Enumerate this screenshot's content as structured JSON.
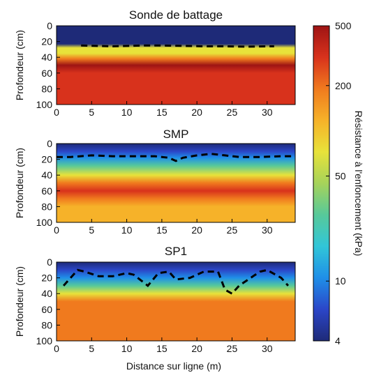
{
  "colors": {
    "background": "#ffffff",
    "axis": "#000000",
    "boundary_line": "#000000",
    "colormap": [
      "#1e2a78",
      "#2b46c8",
      "#1f8fe8",
      "#31c6d8",
      "#57c99a",
      "#a6d35a",
      "#e8e23a",
      "#f6b229",
      "#f07a1e",
      "#d8321c",
      "#9e1414"
    ]
  },
  "chart_data": [
    {
      "type": "heatmap",
      "title": "Sonde de battage",
      "xlabel": "",
      "ylabel": "Profondeur (cm)",
      "xlim": [
        0,
        34
      ],
      "ylim": [
        0,
        100
      ],
      "y_inverted": true,
      "xticks": [
        "0",
        "5",
        "10",
        "15",
        "20",
        "25",
        "30"
      ],
      "yticks": [
        "0",
        "20",
        "40",
        "60",
        "80",
        "100"
      ],
      "depth_profile": [
        {
          "depth": 0,
          "kpa": 5
        },
        {
          "depth": 10,
          "kpa": 5
        },
        {
          "depth": 23,
          "kpa": 5
        },
        {
          "depth": 28,
          "kpa": 60
        },
        {
          "depth": 35,
          "kpa": 90
        },
        {
          "depth": 42,
          "kpa": 180
        },
        {
          "depth": 50,
          "kpa": 420
        },
        {
          "depth": 60,
          "kpa": 350
        },
        {
          "depth": 70,
          "kpa": 320
        },
        {
          "depth": 80,
          "kpa": 260
        },
        {
          "depth": 90,
          "kpa": 300
        },
        {
          "depth": 100,
          "kpa": 300
        }
      ],
      "boundary_line": {
        "style": "dashed",
        "x": [
          3.5,
          8,
          12,
          15,
          18,
          21,
          24,
          27,
          30,
          31
        ],
        "y": [
          25,
          26,
          25,
          25,
          25.5,
          26,
          26,
          26.5,
          26,
          26
        ]
      }
    },
    {
      "type": "heatmap",
      "title": "SMP",
      "xlabel": "",
      "ylabel": "Profondeur (cm)",
      "xlim": [
        0,
        34
      ],
      "ylim": [
        0,
        100
      ],
      "y_inverted": true,
      "xticks": [
        "0",
        "5",
        "10",
        "15",
        "20",
        "25",
        "30"
      ],
      "yticks": [
        "0",
        "20",
        "40",
        "60",
        "80",
        "100"
      ],
      "depth_profile": [
        {
          "depth": 0,
          "kpa": 5
        },
        {
          "depth": 10,
          "kpa": 6
        },
        {
          "depth": 18,
          "kpa": 12
        },
        {
          "depth": 28,
          "kpa": 30
        },
        {
          "depth": 40,
          "kpa": 60
        },
        {
          "depth": 50,
          "kpa": 180
        },
        {
          "depth": 60,
          "kpa": 250
        },
        {
          "depth": 70,
          "kpa": 160
        },
        {
          "depth": 80,
          "kpa": 120
        },
        {
          "depth": 90,
          "kpa": 110
        },
        {
          "depth": 100,
          "kpa": 100
        }
      ],
      "boundary_line": {
        "style": "dashed",
        "x": [
          0,
          2,
          5,
          8,
          11,
          14,
          16,
          17,
          18,
          20,
          22,
          24,
          26,
          29,
          32,
          34
        ],
        "y": [
          17,
          17,
          15,
          16,
          16,
          16,
          18,
          22,
          18,
          15,
          13,
          15,
          17,
          17,
          16,
          16
        ]
      }
    },
    {
      "type": "heatmap",
      "title": "SP1",
      "xlabel": "Distance sur ligne (m)",
      "ylabel": "Profondeur (cm)",
      "xlim": [
        0,
        34
      ],
      "ylim": [
        0,
        100
      ],
      "y_inverted": true,
      "xticks": [
        "0",
        "5",
        "10",
        "15",
        "20",
        "25",
        "30"
      ],
      "yticks": [
        "0",
        "20",
        "40",
        "60",
        "80",
        "100"
      ],
      "depth_profile": [
        {
          "depth": 0,
          "kpa": 5
        },
        {
          "depth": 10,
          "kpa": 6
        },
        {
          "depth": 20,
          "kpa": 12
        },
        {
          "depth": 30,
          "kpa": 30
        },
        {
          "depth": 40,
          "kpa": 60
        },
        {
          "depth": 50,
          "kpa": 200
        },
        {
          "depth": 60,
          "kpa": 220
        },
        {
          "depth": 70,
          "kpa": 240
        },
        {
          "depth": 80,
          "kpa": 180
        },
        {
          "depth": 90,
          "kpa": 200
        },
        {
          "depth": 100,
          "kpa": 220
        }
      ],
      "boundary_line": {
        "style": "dashed",
        "x": [
          1,
          2,
          3,
          4,
          6,
          8,
          10,
          11,
          13,
          14.5,
          16,
          17,
          19,
          21,
          23,
          24,
          25,
          26,
          28,
          29,
          30,
          32,
          33
        ],
        "y": [
          30,
          20,
          10,
          12,
          18,
          18,
          14,
          16,
          30,
          14,
          12,
          22,
          20,
          12,
          12,
          35,
          40,
          30,
          18,
          12,
          10,
          20,
          30
        ]
      }
    }
  ],
  "colorbar": {
    "label": "Résistance à l'enfoncement (kPa)",
    "scale": "log",
    "range": [
      4,
      500
    ],
    "ticks": [
      {
        "value": 500,
        "label": "500"
      },
      {
        "value": 200,
        "label": "200"
      },
      {
        "value": 50,
        "label": "50"
      },
      {
        "value": 10,
        "label": "10"
      },
      {
        "value": 4,
        "label": "4"
      }
    ]
  }
}
